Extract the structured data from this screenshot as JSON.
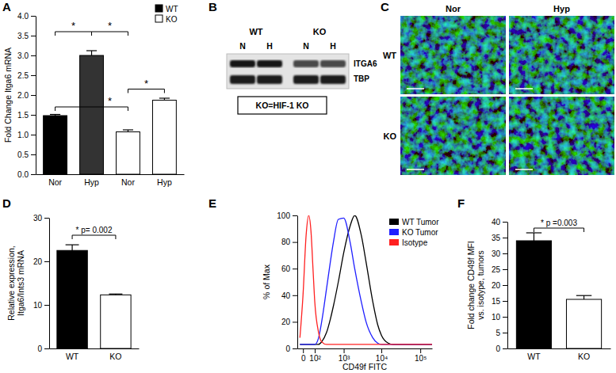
{
  "chart_data": [
    {
      "type": "bar",
      "title": "A",
      "ylabel": "Fold Change Itga6 mRNA",
      "categories": [
        "Nor",
        "Hyp",
        "Nor",
        "Hyp"
      ],
      "series": [
        {
          "name": "WT",
          "color": "#000000",
          "colors": [
            "#000000",
            "#333333",
            null,
            null
          ],
          "values": [
            1.48,
            3.0,
            null,
            null
          ],
          "errors": [
            0.03,
            0.12,
            null,
            null
          ]
        },
        {
          "name": "KO",
          "color": "#ffffff",
          "values": [
            null,
            null,
            1.07,
            1.87
          ],
          "errors": [
            null,
            null,
            0.05,
            0.05
          ]
        }
      ],
      "ylim": [
        0,
        4
      ],
      "yticks": [
        {
          "value": 0,
          "label": "0.0"
        },
        {
          "value": 0.5,
          "label": "0.5"
        },
        {
          "value": 1,
          "label": "1.0"
        },
        {
          "value": 1.5,
          "label": "1.5"
        },
        {
          "value": 2,
          "label": "2.0"
        },
        {
          "value": 2.5,
          "label": "2.5"
        },
        {
          "value": 3,
          "label": "3.0"
        },
        {
          "value": 3.5,
          "label": "3.5"
        },
        {
          "value": 4,
          "label": "4.0"
        }
      ],
      "legend": "upper right",
      "annotations": [
        {
          "text": "*",
          "x": [
            0,
            1
          ],
          "y": 3.6
        },
        {
          "text": "*",
          "x": [
            1,
            2
          ],
          "y": 3.6
        },
        {
          "text": "*",
          "x": [
            0,
            2
          ],
          "y": 1.7
        },
        {
          "text": "*",
          "x": [
            2,
            3
          ],
          "y": 2.15
        }
      ]
    },
    {
      "type": "bar",
      "title": "D",
      "ylabel": [
        "Relative expression,",
        "Itga6/Ints3 mRNA"
      ],
      "categories": [
        "WT",
        "KO"
      ],
      "values": [
        22.5,
        12.3
      ],
      "errors": [
        1.3,
        0.2
      ],
      "colors": [
        "#000000",
        "#ffffff"
      ],
      "ylim": [
        0,
        30
      ],
      "yticks": [
        0,
        10,
        20,
        30
      ],
      "annotations": [
        {
          "text": "* p= 0.002",
          "x": [
            0,
            1
          ],
          "y": 26
        }
      ]
    },
    {
      "type": "line",
      "title": "E",
      "xlabel": "CD49f FITC",
      "ylabel": "% of Max",
      "x": [
        -20,
        0,
        20,
        40,
        60,
        80,
        100,
        150,
        200,
        300,
        400,
        500,
        700,
        1000,
        1500,
        2000,
        3000,
        4000,
        6000,
        8000,
        10000,
        15000,
        20000,
        50000,
        100000,
        200000
      ],
      "series": [
        {
          "name": "WT Tumor",
          "color": "#000000",
          "values": [
            3,
            3,
            3,
            3,
            3,
            3,
            3,
            3,
            5,
            12,
            22,
            32,
            50,
            72,
            92,
            100,
            85,
            65,
            35,
            18,
            10,
            4,
            3,
            3,
            3,
            3
          ]
        },
        {
          "name": "KO Tumor",
          "color": "#1f1fff",
          "values": [
            3,
            3,
            3,
            3,
            3,
            3,
            3,
            8,
            20,
            45,
            65,
            80,
            97,
            98,
            80,
            60,
            35,
            20,
            8,
            4,
            3,
            3,
            3,
            3,
            3,
            3
          ]
        },
        {
          "name": "Isotype",
          "color": "#ff2020",
          "values": [
            8,
            40,
            85,
            100,
            88,
            60,
            35,
            12,
            5,
            3,
            3,
            3,
            3,
            3,
            3,
            3,
            3,
            3,
            3,
            3,
            3,
            3,
            3,
            3,
            3,
            3
          ]
        }
      ],
      "xlim": [
        -40,
        200000
      ],
      "xticks": [
        0,
        {
          "value": 100,
          "label": "10²"
        },
        {
          "value": 1000,
          "label": "10³"
        },
        {
          "value": 10000,
          "label": "10⁴"
        },
        {
          "value": 100000,
          "label": "10⁵"
        }
      ],
      "ylim": [
        0,
        100
      ],
      "yticks": [
        0,
        20,
        40,
        60,
        80,
        100
      ],
      "log": "x",
      "legend": "upper right"
    },
    {
      "type": "bar",
      "title": "F",
      "ylabel": [
        "Fold change CD49f MFI",
        "vs. isotype, tumors"
      ],
      "categories": [
        "WT",
        "KO"
      ],
      "values": [
        34,
        15.5
      ],
      "errors": [
        2.5,
        1.2
      ],
      "colors": [
        "#000000",
        "#ffffff"
      ],
      "ylim": [
        0,
        40
      ],
      "yticks": [
        0,
        5,
        10,
        15,
        20,
        25,
        30,
        35,
        40
      ],
      "annotations": [
        {
          "text": "* p =0.003",
          "x": [
            0,
            1
          ],
          "y": 38
        }
      ]
    }
  ],
  "blot": {
    "title": "B",
    "groups": [
      "WT",
      "KO"
    ],
    "lanes": [
      "N",
      "H",
      "N",
      "H"
    ],
    "bands": [
      "ITGA6",
      "TBP"
    ],
    "caption": "KO=HIF-1 KO"
  },
  "micrograph": {
    "title": "C",
    "columns": [
      "Nor",
      "Hyp"
    ],
    "rows": [
      "WT",
      "KO"
    ]
  }
}
